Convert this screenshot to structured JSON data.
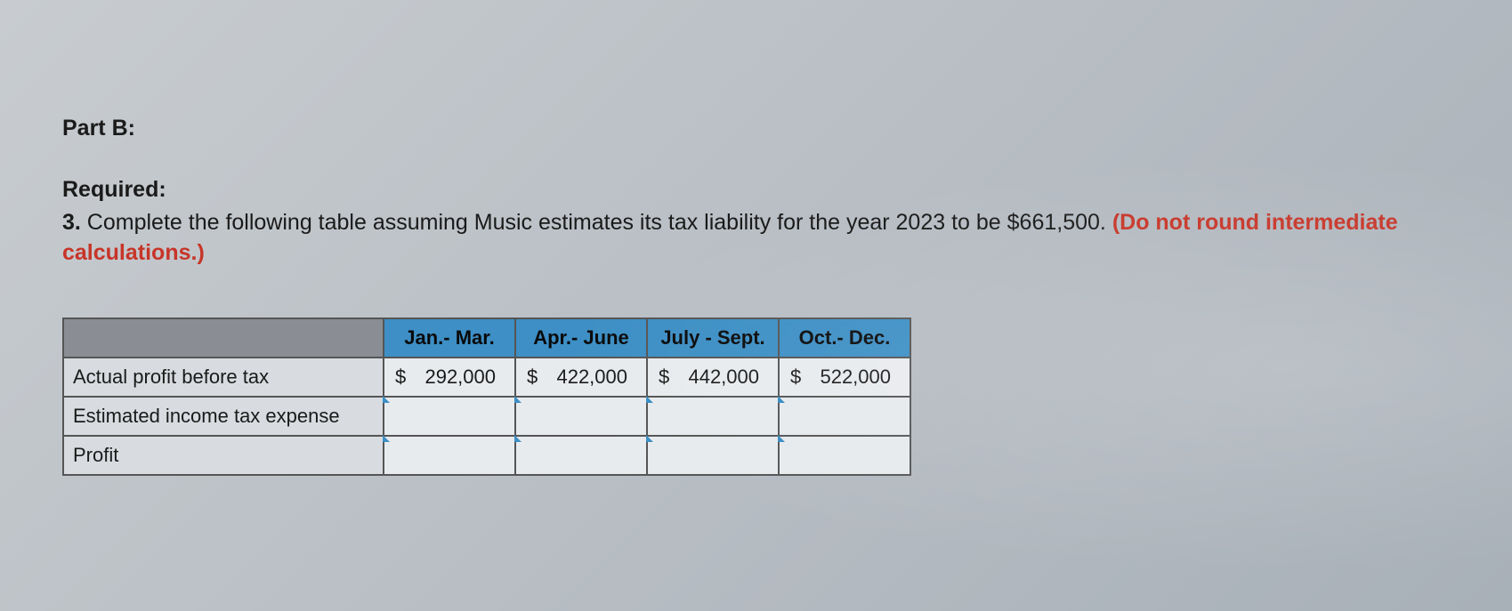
{
  "part_label": "Part B:",
  "required_label": "Required:",
  "question": {
    "number": "3.",
    "text_before_warning": " Complete the following table assuming Music estimates its tax liability for the year 2023 to be $661,500. ",
    "warning": "(Do not round intermediate calculations.)"
  },
  "table": {
    "headers": [
      "Jan.- Mar.",
      "Apr.- June",
      "July - Sept.",
      "Oct.- Dec."
    ],
    "rows": [
      {
        "label": "Actual profit before tax",
        "values": [
          "292,000",
          "422,000",
          "442,000",
          "522,000"
        ],
        "currency": "$",
        "has_values": true
      },
      {
        "label": "Estimated income tax expense",
        "values": [
          "",
          "",
          "",
          ""
        ],
        "has_values": false
      },
      {
        "label": "Profit",
        "values": [
          "",
          "",
          "",
          ""
        ],
        "has_values": false
      }
    ]
  },
  "colors": {
    "header_blue": "#3d8fc5",
    "header_gray": "#8a8e94",
    "row_label_bg": "#d8dce0",
    "cell_bg": "#e8ebee",
    "warning_text": "#c73528",
    "body_bg": "#c0c6cc",
    "border": "#555555"
  }
}
